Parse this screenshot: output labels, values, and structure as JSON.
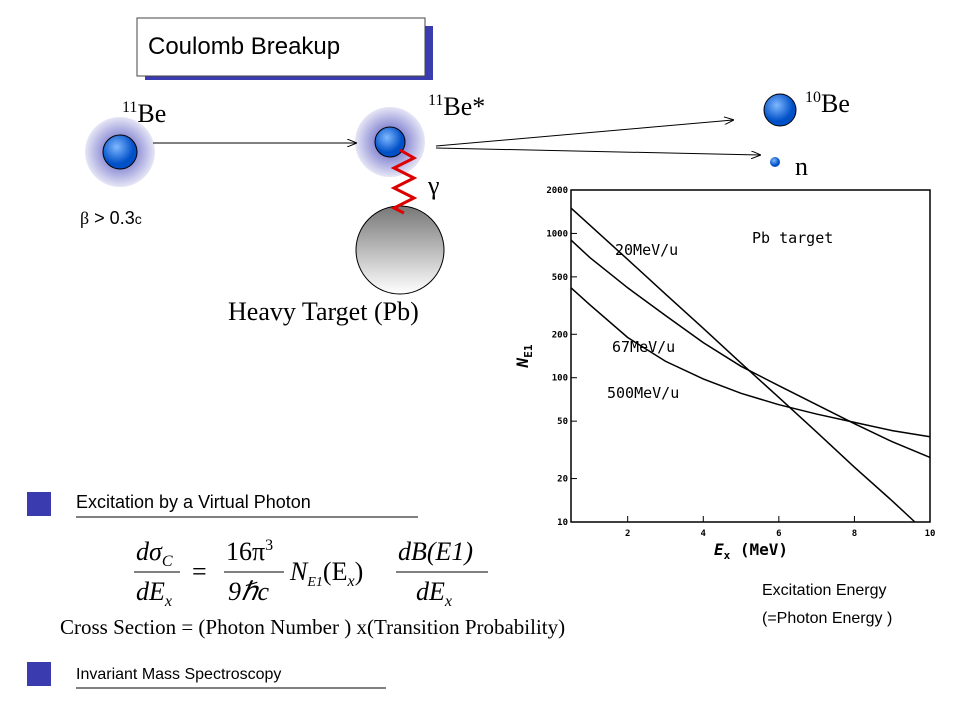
{
  "title": "Coulomb Breakup",
  "diagram": {
    "projectile": {
      "mass": "11",
      "symbol": "Be"
    },
    "excited": {
      "mass": "11",
      "symbol": "Be*"
    },
    "fragment": {
      "mass": "10",
      "symbol": "Be"
    },
    "neutron": "n",
    "photon": "γ",
    "velocity": {
      "symbol": "β",
      "text": " > 0.3",
      "unit": "c"
    },
    "target": "Heavy Target (Pb)"
  },
  "section1": {
    "heading": "Excitation by a Virtual Photon",
    "formula": {
      "lhs_num": "dσ",
      "lhs_num_sub": "C",
      "lhs_den": "dE",
      "lhs_den_sub": "x",
      "eq": "=",
      "coef_num": "16π",
      "coef_num_sup": "3",
      "coef_den": "9ℏc",
      "n": "N",
      "n_sub": "E1",
      "arg": "(E",
      "arg_sub": "x",
      "arg_close": ")",
      "rhs_num": "dB(E1)",
      "rhs_den": "dE",
      "rhs_den_sub": "x"
    },
    "caption": "Cross Section = (Photon Number ) x(Transition Probability)"
  },
  "section2": {
    "heading": "Invariant Mass Spectroscopy"
  },
  "chart_caption": [
    "Excitation Energy",
    "(=Photon Energy )"
  ],
  "chart_data": {
    "type": "line",
    "annotation": "Pb target",
    "xlabel": {
      "symbol": "E",
      "subscript": "x",
      "unit": " (MeV)"
    },
    "ylabel": {
      "symbol": "N",
      "subscript": "E1"
    },
    "log_y": true,
    "xlim": [
      0.5,
      10
    ],
    "ylim": [
      10,
      2000
    ],
    "xticks": [
      2,
      4,
      6,
      8,
      10
    ],
    "yticks": [
      10,
      20,
      50,
      100,
      200,
      500,
      1000,
      2000
    ],
    "series": [
      {
        "name": "20MeV/u",
        "color": "#000000",
        "x": [
          0.5,
          1,
          2,
          3,
          4,
          5,
          6,
          7,
          8,
          9,
          9.6
        ],
        "values": [
          1500,
          1140,
          660,
          380,
          220,
          126,
          73,
          42,
          24,
          14,
          10
        ]
      },
      {
        "name": "67MeV/u",
        "color": "#000000",
        "x": [
          0.5,
          1,
          2,
          3,
          4,
          5,
          6,
          7,
          8,
          9,
          10
        ],
        "values": [
          900,
          680,
          420,
          270,
          175,
          120,
          88,
          65,
          48,
          36,
          28
        ]
      },
      {
        "name": "500MeV/u",
        "color": "#000000",
        "x": [
          0.5,
          1,
          2,
          3,
          4,
          5,
          6,
          7,
          8,
          9,
          10
        ],
        "values": [
          420,
          320,
          190,
          130,
          98,
          78,
          65,
          56,
          49,
          43,
          39
        ]
      }
    ]
  }
}
